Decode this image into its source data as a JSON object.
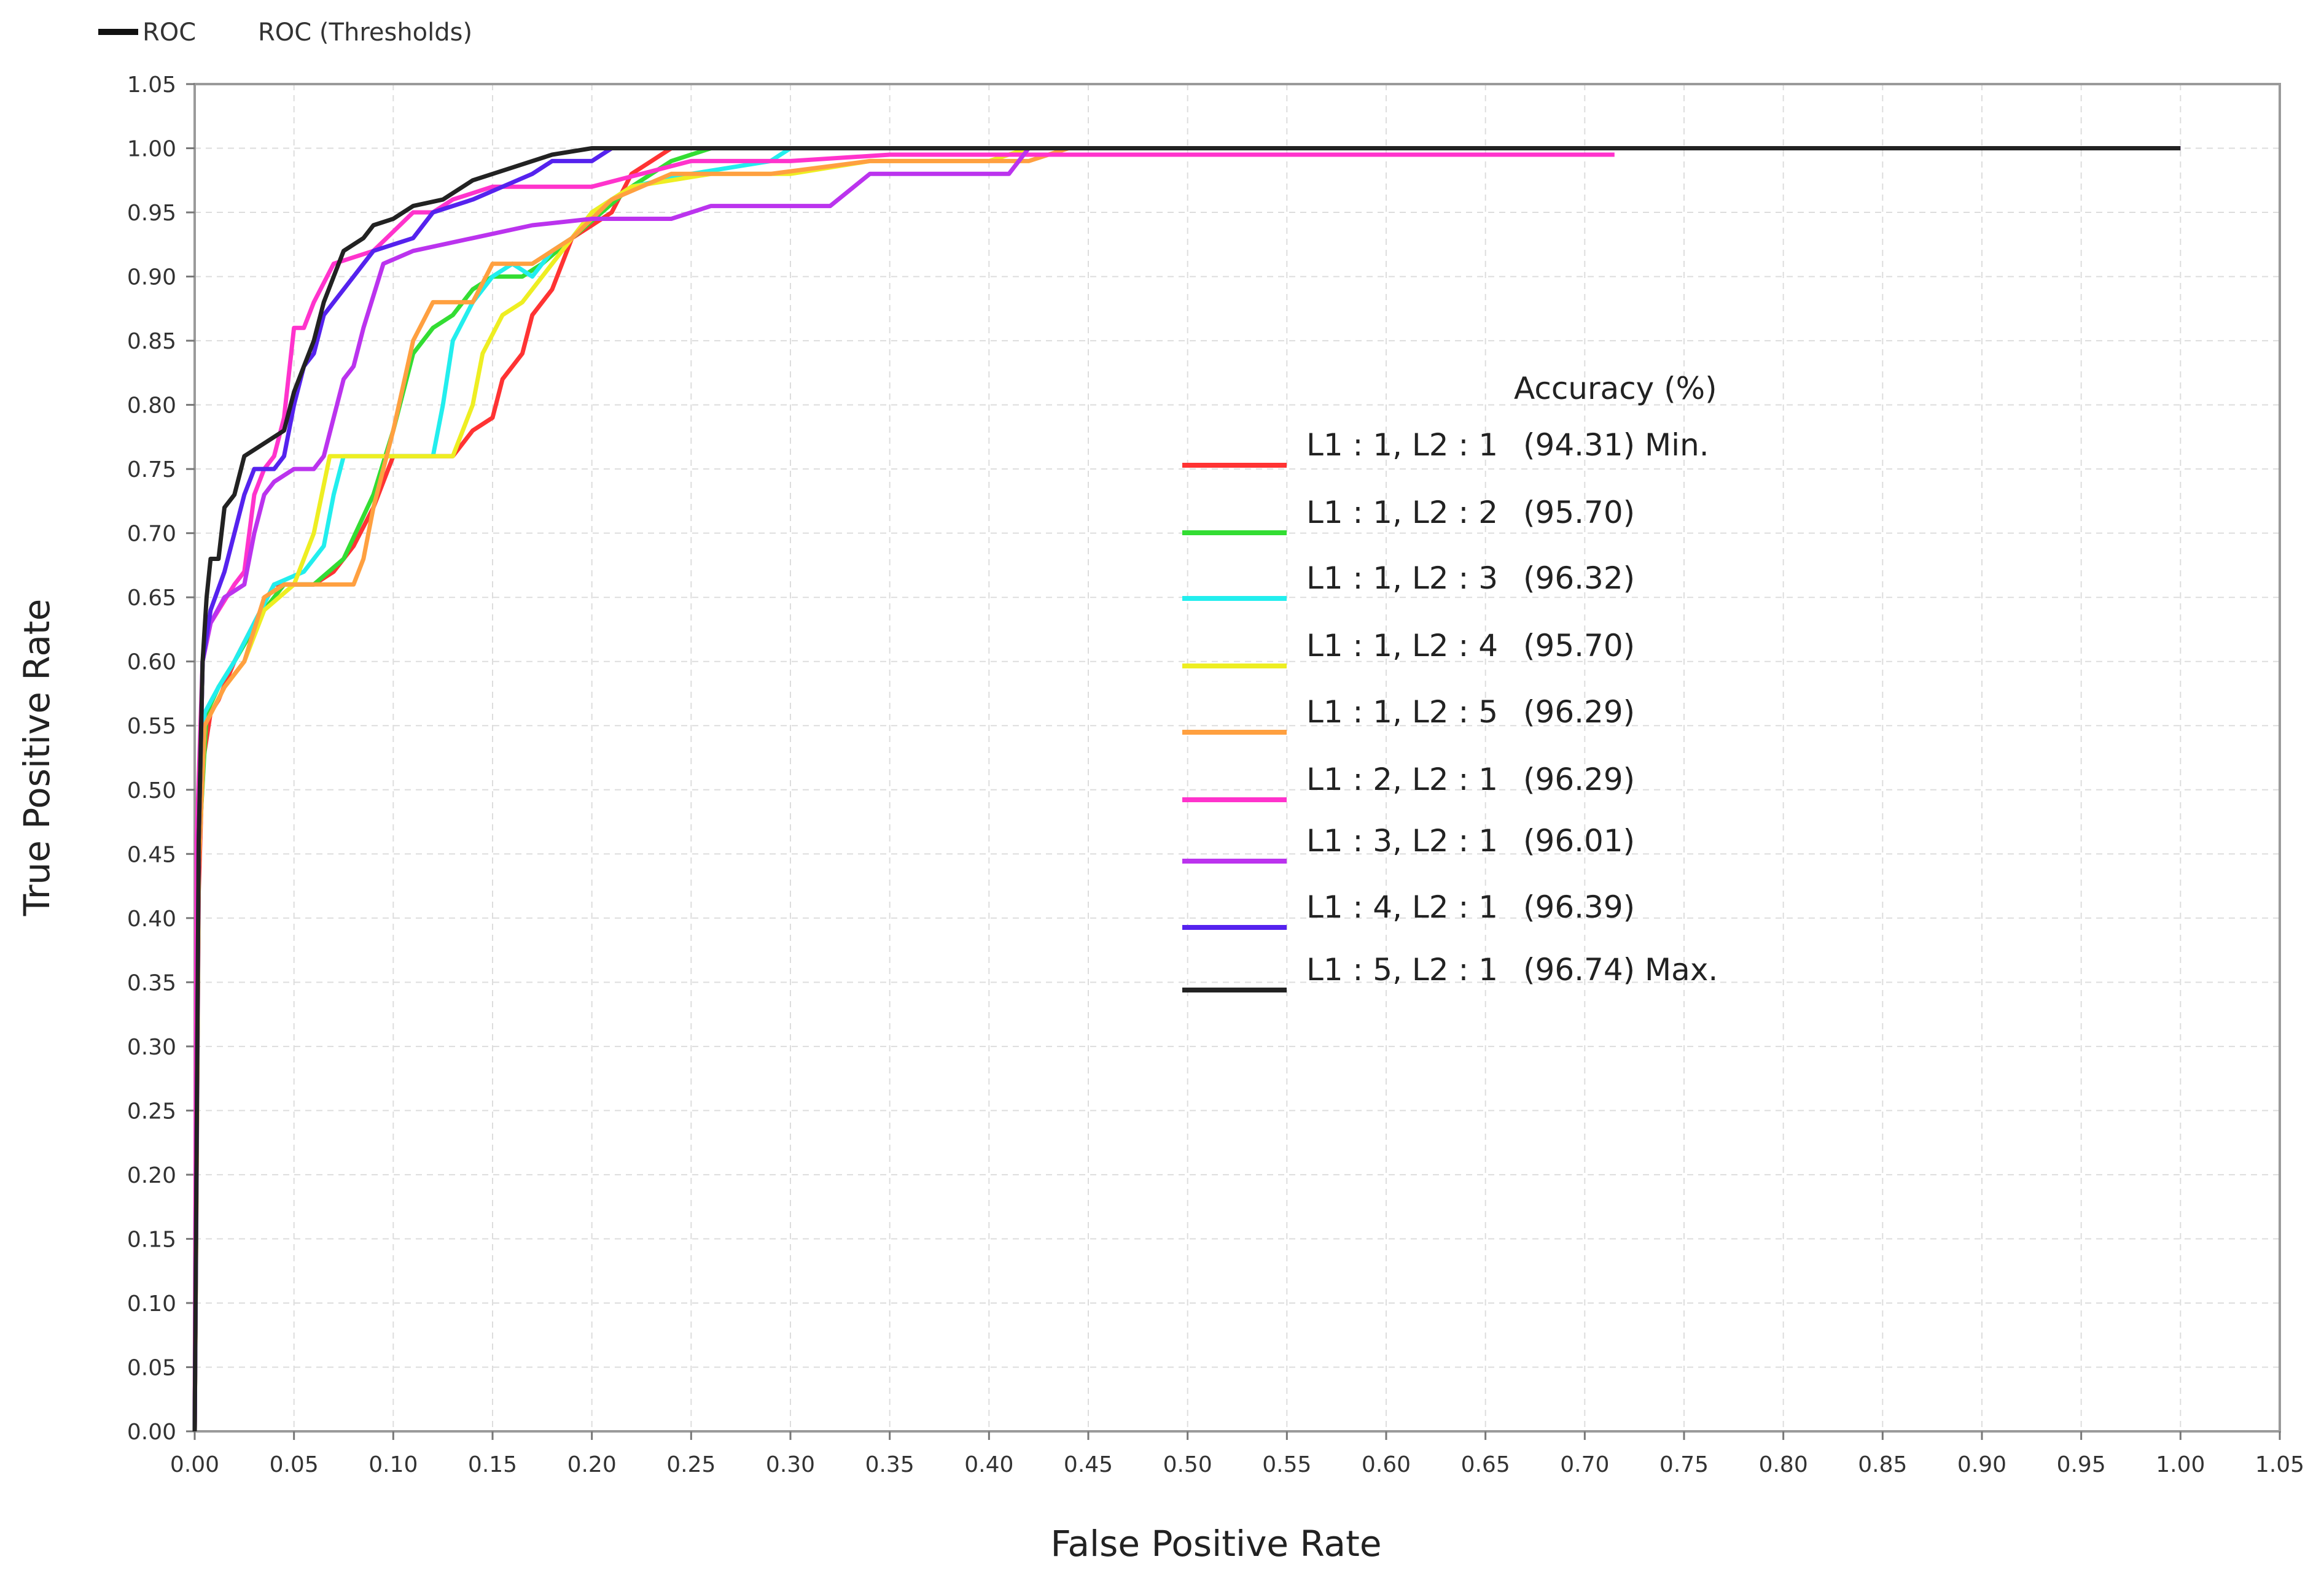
{
  "chart_data": {
    "type": "line",
    "top_legend": [
      {
        "label": "ROC",
        "color": "#111111"
      },
      {
        "label": "ROC (Thresholds)"
      }
    ],
    "xlabel": "False Positive Rate",
    "ylabel": "True Positive Rate",
    "xlim": [
      0,
      1.05
    ],
    "ylim": [
      0,
      1.05
    ],
    "xticks": [
      "0.00",
      "0.05",
      "0.10",
      "0.15",
      "0.20",
      "0.25",
      "0.30",
      "0.35",
      "0.40",
      "0.45",
      "0.50",
      "0.55",
      "0.60",
      "0.65",
      "0.70",
      "0.75",
      "0.80",
      "0.85",
      "0.90",
      "0.95",
      "1.00",
      "1.05"
    ],
    "yticks": [
      "0.00",
      "0.05",
      "0.10",
      "0.15",
      "0.20",
      "0.25",
      "0.30",
      "0.35",
      "0.40",
      "0.45",
      "0.50",
      "0.55",
      "0.60",
      "0.65",
      "0.70",
      "0.75",
      "0.80",
      "0.85",
      "0.90",
      "0.95",
      "1.00",
      "1.05"
    ],
    "grid": true,
    "legend_title": "Accuracy (%)",
    "legend_position": "center-right",
    "series": [
      {
        "name": "L1 : 1, L2 : 1",
        "accuracy": "(94.31) Min.",
        "color": "#ff3333",
        "points": [
          [
            0,
            0
          ],
          [
            0.002,
            0.42
          ],
          [
            0.004,
            0.52
          ],
          [
            0.008,
            0.56
          ],
          [
            0.012,
            0.57
          ],
          [
            0.02,
            0.6
          ],
          [
            0.03,
            0.63
          ],
          [
            0.04,
            0.66
          ],
          [
            0.06,
            0.66
          ],
          [
            0.07,
            0.67
          ],
          [
            0.08,
            0.69
          ],
          [
            0.09,
            0.72
          ],
          [
            0.1,
            0.76
          ],
          [
            0.11,
            0.76
          ],
          [
            0.125,
            0.76
          ],
          [
            0.13,
            0.76
          ],
          [
            0.135,
            0.77
          ],
          [
            0.14,
            0.78
          ],
          [
            0.15,
            0.79
          ],
          [
            0.155,
            0.82
          ],
          [
            0.165,
            0.84
          ],
          [
            0.17,
            0.87
          ],
          [
            0.18,
            0.89
          ],
          [
            0.19,
            0.93
          ],
          [
            0.2,
            0.94
          ],
          [
            0.21,
            0.95
          ],
          [
            0.22,
            0.98
          ],
          [
            0.23,
            0.99
          ],
          [
            0.24,
            1.0
          ],
          [
            1.0,
            1.0
          ]
        ]
      },
      {
        "name": "L1 : 1, L2 : 2",
        "accuracy": "(95.70)",
        "color": "#33dd33",
        "points": [
          [
            0,
            0
          ],
          [
            0.002,
            0.45
          ],
          [
            0.006,
            0.56
          ],
          [
            0.012,
            0.58
          ],
          [
            0.02,
            0.6
          ],
          [
            0.035,
            0.64
          ],
          [
            0.045,
            0.66
          ],
          [
            0.06,
            0.66
          ],
          [
            0.075,
            0.68
          ],
          [
            0.09,
            0.73
          ],
          [
            0.1,
            0.78
          ],
          [
            0.11,
            0.84
          ],
          [
            0.12,
            0.86
          ],
          [
            0.13,
            0.87
          ],
          [
            0.14,
            0.89
          ],
          [
            0.15,
            0.9
          ],
          [
            0.165,
            0.9
          ],
          [
            0.175,
            0.91
          ],
          [
            0.19,
            0.93
          ],
          [
            0.205,
            0.95
          ],
          [
            0.22,
            0.97
          ],
          [
            0.24,
            0.99
          ],
          [
            0.26,
            1.0
          ],
          [
            1.0,
            1.0
          ]
        ]
      },
      {
        "name": "L1 : 1, L2 : 3",
        "accuracy": "(96.32)",
        "color": "#22eeee",
        "points": [
          [
            0,
            0
          ],
          [
            0.002,
            0.45
          ],
          [
            0.005,
            0.56
          ],
          [
            0.012,
            0.58
          ],
          [
            0.02,
            0.6
          ],
          [
            0.03,
            0.63
          ],
          [
            0.04,
            0.66
          ],
          [
            0.055,
            0.67
          ],
          [
            0.065,
            0.69
          ],
          [
            0.07,
            0.73
          ],
          [
            0.075,
            0.76
          ],
          [
            0.09,
            0.76
          ],
          [
            0.1,
            0.76
          ],
          [
            0.12,
            0.76
          ],
          [
            0.125,
            0.8
          ],
          [
            0.13,
            0.85
          ],
          [
            0.14,
            0.88
          ],
          [
            0.15,
            0.9
          ],
          [
            0.16,
            0.91
          ],
          [
            0.17,
            0.9
          ],
          [
            0.18,
            0.92
          ],
          [
            0.19,
            0.93
          ],
          [
            0.2,
            0.95
          ],
          [
            0.22,
            0.97
          ],
          [
            0.25,
            0.98
          ],
          [
            0.29,
            0.99
          ],
          [
            0.3,
            1.0
          ],
          [
            1.0,
            1.0
          ]
        ]
      },
      {
        "name": "L1 : 1, L2 : 4",
        "accuracy": "(95.70)",
        "color": "#eeee22",
        "points": [
          [
            0,
            0
          ],
          [
            0.002,
            0.44
          ],
          [
            0.005,
            0.55
          ],
          [
            0.015,
            0.58
          ],
          [
            0.025,
            0.6
          ],
          [
            0.035,
            0.64
          ],
          [
            0.05,
            0.66
          ],
          [
            0.06,
            0.7
          ],
          [
            0.068,
            0.76
          ],
          [
            0.08,
            0.76
          ],
          [
            0.095,
            0.76
          ],
          [
            0.11,
            0.76
          ],
          [
            0.12,
            0.76
          ],
          [
            0.13,
            0.76
          ],
          [
            0.14,
            0.8
          ],
          [
            0.145,
            0.84
          ],
          [
            0.155,
            0.87
          ],
          [
            0.165,
            0.88
          ],
          [
            0.175,
            0.9
          ],
          [
            0.185,
            0.92
          ],
          [
            0.2,
            0.95
          ],
          [
            0.22,
            0.97
          ],
          [
            0.26,
            0.98
          ],
          [
            0.3,
            0.98
          ],
          [
            0.34,
            0.99
          ],
          [
            0.4,
            0.99
          ],
          [
            0.42,
            1.0
          ],
          [
            1.0,
            1.0
          ]
        ]
      },
      {
        "name": "L1 : 1, L2 : 5",
        "accuracy": "(96.29)",
        "color": "#ffa040",
        "points": [
          [
            0,
            0
          ],
          [
            0.002,
            0.44
          ],
          [
            0.005,
            0.55
          ],
          [
            0.015,
            0.58
          ],
          [
            0.025,
            0.6
          ],
          [
            0.035,
            0.65
          ],
          [
            0.045,
            0.66
          ],
          [
            0.06,
            0.66
          ],
          [
            0.07,
            0.66
          ],
          [
            0.08,
            0.66
          ],
          [
            0.085,
            0.68
          ],
          [
            0.09,
            0.72
          ],
          [
            0.1,
            0.78
          ],
          [
            0.11,
            0.85
          ],
          [
            0.12,
            0.88
          ],
          [
            0.14,
            0.88
          ],
          [
            0.15,
            0.91
          ],
          [
            0.17,
            0.91
          ],
          [
            0.18,
            0.92
          ],
          [
            0.19,
            0.93
          ],
          [
            0.21,
            0.96
          ],
          [
            0.24,
            0.98
          ],
          [
            0.29,
            0.98
          ],
          [
            0.34,
            0.99
          ],
          [
            0.42,
            0.99
          ],
          [
            0.44,
            1.0
          ],
          [
            1.0,
            1.0
          ]
        ]
      },
      {
        "name": "L1 : 2, L2 : 1",
        "accuracy": "(96.29)",
        "color": "#ff33cc",
        "points": [
          [
            0,
            0
          ],
          [
            0.001,
            0.46
          ],
          [
            0.004,
            0.6
          ],
          [
            0.008,
            0.63
          ],
          [
            0.012,
            0.64
          ],
          [
            0.02,
            0.66
          ],
          [
            0.025,
            0.67
          ],
          [
            0.03,
            0.73
          ],
          [
            0.035,
            0.75
          ],
          [
            0.04,
            0.76
          ],
          [
            0.045,
            0.79
          ],
          [
            0.05,
            0.86
          ],
          [
            0.055,
            0.86
          ],
          [
            0.06,
            0.88
          ],
          [
            0.07,
            0.91
          ],
          [
            0.09,
            0.92
          ],
          [
            0.11,
            0.95
          ],
          [
            0.12,
            0.95
          ],
          [
            0.13,
            0.96
          ],
          [
            0.15,
            0.97
          ],
          [
            0.2,
            0.97
          ],
          [
            0.25,
            0.99
          ],
          [
            0.3,
            0.99
          ],
          [
            0.35,
            0.995
          ],
          [
            0.715,
            0.995
          ]
        ]
      },
      {
        "name": "L1 : 3, L2 : 1",
        "accuracy": "(96.01)",
        "color": "#bb33ee",
        "points": [
          [
            0,
            0
          ],
          [
            0.002,
            0.46
          ],
          [
            0.004,
            0.6
          ],
          [
            0.008,
            0.63
          ],
          [
            0.015,
            0.65
          ],
          [
            0.025,
            0.66
          ],
          [
            0.03,
            0.7
          ],
          [
            0.035,
            0.73
          ],
          [
            0.04,
            0.74
          ],
          [
            0.05,
            0.75
          ],
          [
            0.06,
            0.75
          ],
          [
            0.065,
            0.76
          ],
          [
            0.07,
            0.79
          ],
          [
            0.075,
            0.82
          ],
          [
            0.08,
            0.83
          ],
          [
            0.085,
            0.86
          ],
          [
            0.095,
            0.91
          ],
          [
            0.11,
            0.92
          ],
          [
            0.14,
            0.93
          ],
          [
            0.17,
            0.94
          ],
          [
            0.2,
            0.945
          ],
          [
            0.24,
            0.945
          ],
          [
            0.26,
            0.955
          ],
          [
            0.32,
            0.955
          ],
          [
            0.34,
            0.98
          ],
          [
            0.41,
            0.98
          ],
          [
            0.42,
            1.0
          ],
          [
            1.0,
            1.0
          ]
        ]
      },
      {
        "name": "L1 : 4, L2 : 1",
        "accuracy": "(96.39)",
        "color": "#5522ee",
        "points": [
          [
            0,
            0
          ],
          [
            0.002,
            0.46
          ],
          [
            0.004,
            0.6
          ],
          [
            0.008,
            0.64
          ],
          [
            0.015,
            0.67
          ],
          [
            0.02,
            0.7
          ],
          [
            0.025,
            0.73
          ],
          [
            0.03,
            0.75
          ],
          [
            0.04,
            0.75
          ],
          [
            0.045,
            0.76
          ],
          [
            0.05,
            0.8
          ],
          [
            0.055,
            0.83
          ],
          [
            0.06,
            0.84
          ],
          [
            0.065,
            0.87
          ],
          [
            0.07,
            0.88
          ],
          [
            0.08,
            0.9
          ],
          [
            0.09,
            0.92
          ],
          [
            0.11,
            0.93
          ],
          [
            0.12,
            0.95
          ],
          [
            0.14,
            0.96
          ],
          [
            0.155,
            0.97
          ],
          [
            0.17,
            0.98
          ],
          [
            0.18,
            0.99
          ],
          [
            0.2,
            0.99
          ],
          [
            0.21,
            1.0
          ],
          [
            1.0,
            1.0
          ]
        ]
      },
      {
        "name": "L1 : 5, L2 : 1",
        "accuracy": "(96.74) Max.",
        "color": "#222222",
        "points": [
          [
            0,
            0
          ],
          [
            0.002,
            0.46
          ],
          [
            0.004,
            0.6
          ],
          [
            0.006,
            0.65
          ],
          [
            0.008,
            0.68
          ],
          [
            0.012,
            0.68
          ],
          [
            0.015,
            0.72
          ],
          [
            0.02,
            0.73
          ],
          [
            0.025,
            0.76
          ],
          [
            0.035,
            0.77
          ],
          [
            0.045,
            0.78
          ],
          [
            0.05,
            0.81
          ],
          [
            0.055,
            0.83
          ],
          [
            0.06,
            0.85
          ],
          [
            0.065,
            0.88
          ],
          [
            0.07,
            0.9
          ],
          [
            0.075,
            0.92
          ],
          [
            0.085,
            0.93
          ],
          [
            0.09,
            0.94
          ],
          [
            0.1,
            0.945
          ],
          [
            0.11,
            0.955
          ],
          [
            0.125,
            0.96
          ],
          [
            0.14,
            0.975
          ],
          [
            0.16,
            0.985
          ],
          [
            0.18,
            0.995
          ],
          [
            0.2,
            1.0
          ],
          [
            1.0,
            1.0
          ]
        ]
      }
    ]
  }
}
